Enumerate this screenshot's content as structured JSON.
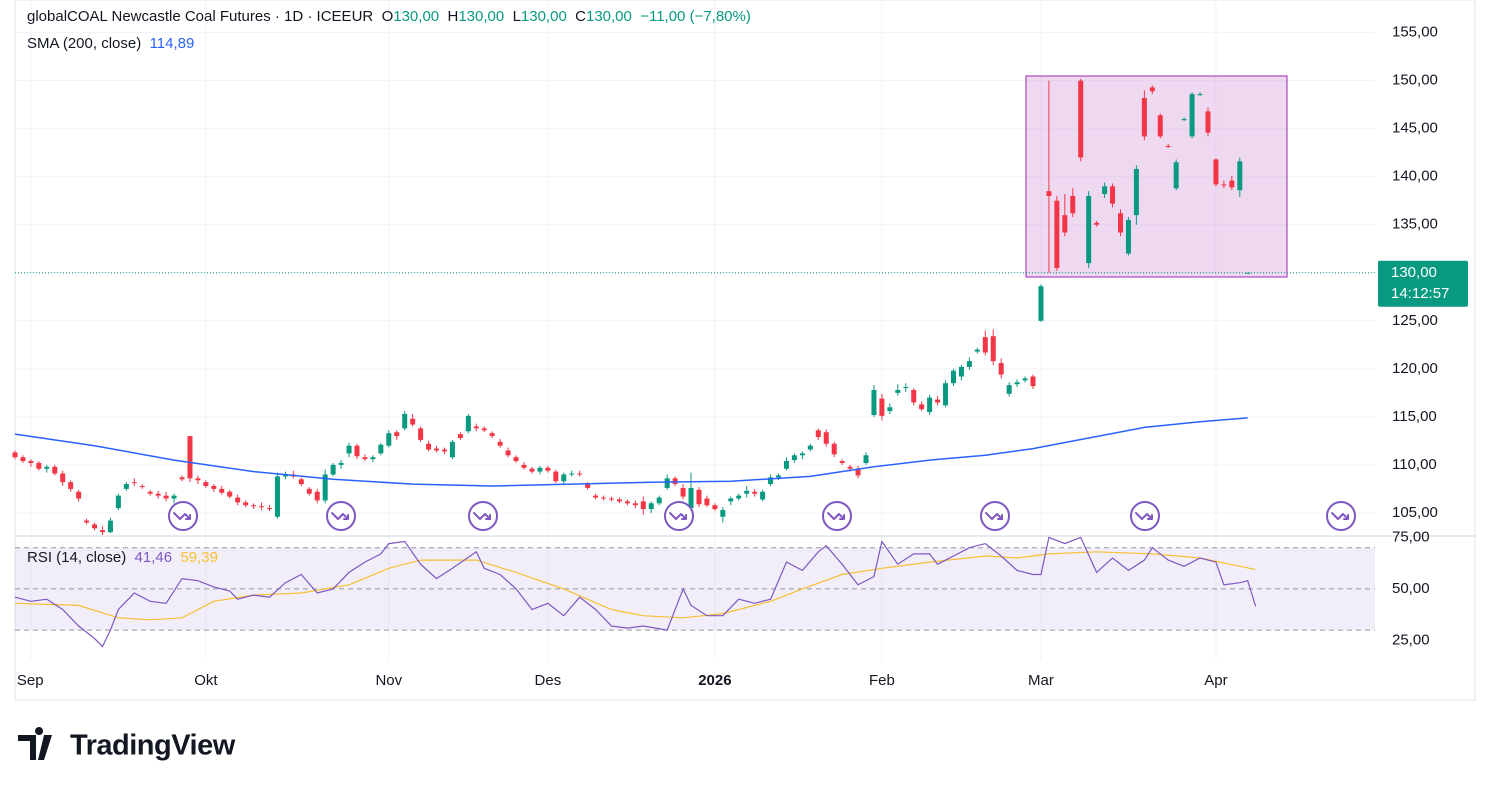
{
  "chart_data": {
    "type": "candlestick",
    "title": "globalCOAL Newcastle Coal Futures · 1D · ICEEUR",
    "quote": [
      {
        "name": "O",
        "value": 130,
        "label": "130,00"
      },
      {
        "name": "H",
        "value": 130,
        "label": "130,00"
      },
      {
        "name": "L",
        "value": 130,
        "label": "130,00"
      },
      {
        "name": "C",
        "value": 130,
        "label": "130,00"
      }
    ],
    "change": {
      "value": -11,
      "label": "−11,00"
    },
    "change_pct": {
      "value": -7.8,
      "label": "(−7,80%)"
    },
    "up_color": "#089981",
    "down_color": "#f23645",
    "candles": [
      [
        111.3,
        111.5,
        110.6,
        110.8
      ],
      [
        110.8,
        111,
        110.2,
        110.4
      ],
      [
        110.4,
        110.6,
        109.8,
        110.2
      ],
      [
        110.2,
        110.4,
        109.4,
        109.6
      ],
      [
        109.6,
        110,
        109.2,
        109.8
      ],
      [
        109.8,
        110,
        108.9,
        109.1
      ],
      [
        109.1,
        109.4,
        107.8,
        108.2
      ],
      [
        108.2,
        108.4,
        107.2,
        107.5
      ],
      [
        107.2,
        107.4,
        106.2,
        106.5
      ],
      [
        104.2,
        104.4,
        103.8,
        104
      ],
      [
        103.8,
        104,
        103.2,
        103.4
      ],
      [
        103.2,
        103.6,
        102.7,
        103
      ],
      [
        103,
        104.5,
        102.9,
        104.2
      ],
      [
        105.5,
        107,
        105.3,
        106.8
      ],
      [
        107.5,
        108.2,
        107.3,
        108
      ],
      [
        108.2,
        108.6,
        107.8,
        108.1
      ],
      [
        107.8,
        108,
        107.5,
        107.7
      ],
      [
        107.2,
        107.4,
        106.8,
        107
      ],
      [
        107,
        107.3,
        106.5,
        106.8
      ],
      [
        106.8,
        107.2,
        106.2,
        106.5
      ],
      [
        106.5,
        107,
        106,
        106.8
      ],
      [
        108.7,
        108.9,
        108.3,
        108.5
      ],
      [
        113,
        113,
        108.2,
        108.6
      ],
      [
        108.6,
        108.9,
        108,
        108.4
      ],
      [
        108.2,
        108.4,
        107.6,
        107.8
      ],
      [
        107.8,
        108,
        107.2,
        107.5
      ],
      [
        107.5,
        107.8,
        106.9,
        107.1
      ],
      [
        107.2,
        107.4,
        106.5,
        106.7
      ],
      [
        106.6,
        106.9,
        105.8,
        106.1
      ],
      [
        106.1,
        106.3,
        105.6,
        105.8
      ],
      [
        105.8,
        106,
        105.4,
        105.7
      ],
      [
        105.7,
        106.1,
        105.3,
        105.6
      ],
      [
        105.5,
        105.8,
        105.2,
        105.4
      ],
      [
        104.6,
        109.2,
        104.4,
        108.8
      ],
      [
        108.8,
        109.3,
        108.5,
        109
      ],
      [
        109,
        109.4,
        108.6,
        108.8
      ],
      [
        108.5,
        108.7,
        107.8,
        108
      ],
      [
        107.5,
        107.7,
        106.8,
        107
      ],
      [
        107.2,
        107.5,
        106,
        106.3
      ],
      [
        106.3,
        109.5,
        106,
        109
      ],
      [
        109,
        110.2,
        108.8,
        110
      ],
      [
        110,
        110.5,
        109.6,
        110.2
      ],
      [
        111.2,
        112.3,
        110.8,
        112
      ],
      [
        112,
        112.2,
        110.6,
        110.9
      ],
      [
        110.8,
        111.1,
        110.4,
        110.6
      ],
      [
        110.6,
        111,
        110.3,
        110.8
      ],
      [
        111.2,
        112.3,
        111,
        112.1
      ],
      [
        112,
        113.6,
        111.8,
        113.3
      ],
      [
        113.4,
        113.6,
        112.6,
        113
      ],
      [
        113.8,
        115.6,
        113.6,
        115.3
      ],
      [
        114.8,
        115.3,
        114,
        114.2
      ],
      [
        113.8,
        114,
        112.4,
        112.6
      ],
      [
        112.2,
        112.5,
        111.4,
        111.6
      ],
      [
        111.7,
        112,
        111.3,
        111.5
      ],
      [
        111.6,
        111.8,
        111.1,
        111.4
      ],
      [
        110.8,
        112.6,
        110.6,
        112.4
      ],
      [
        113.2,
        113.4,
        112.6,
        112.8
      ],
      [
        113.5,
        115.3,
        113.3,
        115.1
      ],
      [
        114,
        114.3,
        113.5,
        113.8
      ],
      [
        113.8,
        114,
        113.4,
        113.6
      ],
      [
        113.3,
        113.5,
        112.8,
        113
      ],
      [
        112.4,
        112.7,
        111.8,
        112
      ],
      [
        111.5,
        111.8,
        110.8,
        111
      ],
      [
        110.8,
        111,
        110.2,
        110.4
      ],
      [
        110,
        110.3,
        109.5,
        109.7
      ],
      [
        109.6,
        109.8,
        109.1,
        109.3
      ],
      [
        109.3,
        109.9,
        109,
        109.7
      ],
      [
        109.7,
        109.9,
        109.2,
        109.4
      ],
      [
        109.3,
        109.5,
        108.1,
        108.3
      ],
      [
        108.3,
        109.2,
        108,
        109
      ],
      [
        109,
        109.4,
        108.8,
        109.1
      ],
      [
        109.1,
        109.4,
        108.8,
        109
      ],
      [
        108,
        108.2,
        107.4,
        107.6
      ],
      [
        106.8,
        107,
        106.4,
        106.6
      ],
      [
        106.6,
        106.8,
        106.3,
        106.5
      ],
      [
        106.5,
        106.7,
        106.2,
        106.4
      ],
      [
        106.4,
        106.6,
        106,
        106.2
      ],
      [
        106.2,
        106.4,
        105.8,
        106
      ],
      [
        106,
        106.3,
        105.5,
        105.8
      ],
      [
        106.2,
        106.7,
        104.8,
        105.4
      ],
      [
        105.4,
        106.2,
        105,
        106
      ],
      [
        106,
        106.8,
        105.8,
        106.6
      ],
      [
        107.6,
        109,
        107.4,
        108.6
      ],
      [
        108.6,
        108.8,
        107.8,
        108
      ],
      [
        107.6,
        108,
        106.4,
        106.7
      ],
      [
        105.5,
        109.2,
        105.2,
        107.6
      ],
      [
        107.4,
        107.7,
        105.6,
        105.9
      ],
      [
        106.5,
        106.8,
        105.6,
        105.8
      ],
      [
        105.8,
        106,
        105.2,
        105.4
      ],
      [
        104.6,
        105.6,
        104,
        105.3
      ],
      [
        106.2,
        106.7,
        105.8,
        106.5
      ],
      [
        106.5,
        107,
        106.3,
        106.8
      ],
      [
        107,
        107.8,
        106.6,
        107.3
      ],
      [
        107.2,
        107.5,
        106.7,
        107
      ],
      [
        106.4,
        107.4,
        106.2,
        107.2
      ],
      [
        108,
        109,
        107.8,
        108.7
      ],
      [
        108.7,
        109.1,
        108.4,
        108.9
      ],
      [
        109.6,
        110.8,
        109.4,
        110.4
      ],
      [
        110.5,
        111.2,
        110.2,
        111
      ],
      [
        111,
        111.4,
        110.6,
        111.2
      ],
      [
        111.6,
        112.2,
        111.4,
        112
      ],
      [
        113.6,
        113.8,
        112.6,
        112.9
      ],
      [
        113.4,
        113.7,
        111.9,
        112.2
      ],
      [
        112.2,
        112.4,
        110.8,
        111.1
      ],
      [
        110.4,
        110.6,
        110,
        110.2
      ],
      [
        109.8,
        110,
        109.3,
        109.6
      ],
      [
        109.6,
        109.9,
        108.6,
        108.9
      ],
      [
        110.2,
        111.3,
        110,
        111
      ],
      [
        115.2,
        118.3,
        115,
        117.8
      ],
      [
        116.9,
        117.4,
        114.6,
        115.1
      ],
      [
        115.6,
        116.4,
        115.3,
        116
      ],
      [
        117.5,
        118.4,
        117.2,
        117.8
      ],
      [
        118,
        118.5,
        117.6,
        118.1
      ],
      [
        117.8,
        118,
        116.2,
        116.5
      ],
      [
        116.3,
        116.6,
        115.6,
        115.8
      ],
      [
        115.5,
        117.3,
        115.2,
        117
      ],
      [
        116.8,
        117.2,
        116.2,
        116.5
      ],
      [
        116.2,
        118.8,
        116,
        118.5
      ],
      [
        118.5,
        120,
        118.2,
        119.8
      ],
      [
        119.2,
        120.4,
        118.8,
        120.2
      ],
      [
        120.2,
        121.2,
        119.9,
        120.8
      ],
      [
        121.8,
        122.2,
        121.6,
        122
      ],
      [
        123.3,
        124,
        121.4,
        121.7
      ],
      [
        123.4,
        124.1,
        120.4,
        120.8
      ],
      [
        120.6,
        121.1,
        119,
        119.4
      ],
      [
        117.4,
        118.6,
        117.1,
        118.3
      ],
      [
        118.4,
        118.9,
        118.1,
        118.6
      ],
      [
        118.8,
        119.2,
        118.6,
        119
      ],
      [
        119.2,
        119.4,
        117.9,
        118.2
      ],
      [
        125,
        128.8,
        124.9,
        128.6
      ],
      [
        138.5,
        150,
        130,
        138
      ],
      [
        137.5,
        138,
        130.2,
        130.5
      ],
      [
        136,
        138.2,
        133.8,
        134.2
      ],
      [
        138,
        138.8,
        135.8,
        136.2
      ],
      [
        150,
        150.2,
        141.6,
        142
      ],
      [
        131,
        138.5,
        130.5,
        138
      ],
      [
        135.2,
        135.4,
        134.8,
        135
      ],
      [
        138.2,
        139.4,
        137.8,
        139
      ],
      [
        139,
        139.3,
        136.8,
        137.2
      ],
      [
        136.2,
        136.6,
        133.8,
        134.2
      ],
      [
        132,
        135.8,
        131.8,
        135.5
      ],
      [
        136,
        141.2,
        135,
        140.8
      ],
      [
        148.2,
        149,
        143.8,
        144.2
      ],
      [
        149.3,
        149.5,
        148.6,
        148.9
      ],
      [
        146.4,
        146.6,
        144,
        144.2
      ],
      [
        143.2,
        143.4,
        143,
        143.1
      ],
      [
        138.8,
        141.8,
        138.6,
        141.5
      ],
      [
        146,
        146.2,
        145.8,
        146
      ],
      [
        144.2,
        148.8,
        144,
        148.6
      ],
      [
        148.6,
        148.8,
        148.4,
        148.6
      ],
      [
        146.8,
        147.2,
        144.2,
        144.6
      ],
      [
        141.8,
        141.9,
        139,
        139.2
      ],
      [
        139.2,
        139.6,
        138.8,
        139.1
      ],
      [
        139.6,
        140.1,
        138.6,
        138.9
      ],
      [
        138.6,
        142,
        137.9,
        141.6
      ],
      [
        130,
        130,
        130,
        130
      ]
    ],
    "last_label": "130,00",
    "countdown": "14:12:57",
    "xlim": [
      0,
      171
    ],
    "xticks": [
      {
        "value": 2,
        "label": "Sep"
      },
      {
        "value": 24,
        "label": "Okt"
      },
      {
        "value": 47,
        "label": "Nov"
      },
      {
        "value": 67,
        "label": "Des"
      },
      {
        "value": 88,
        "label": "2026"
      },
      {
        "value": 109,
        "label": "Feb"
      },
      {
        "value": 129,
        "label": "Mar"
      },
      {
        "value": 151,
        "label": "Apr"
      }
    ],
    "ylim": [
      102.7,
      158.4
    ],
    "yticks": [
      {
        "value": 105,
        "label": "105,00"
      },
      {
        "value": 110,
        "label": "110,00"
      },
      {
        "value": 115,
        "label": "115,00"
      },
      {
        "value": 120,
        "label": "120,00"
      },
      {
        "value": 125,
        "label": "125,00"
      },
      {
        "value": 130,
        "label": "130,00"
      },
      {
        "value": 135,
        "label": "135,00"
      },
      {
        "value": 140,
        "label": "140,00"
      },
      {
        "value": 145,
        "label": "145,00"
      },
      {
        "value": 150,
        "label": "150,00"
      },
      {
        "value": 155,
        "label": "155,00"
      }
    ],
    "grid": true,
    "sma": {
      "name": "SMA (200, close)",
      "color": "#2962ff",
      "last_label": "114,89",
      "x": [
        0,
        10,
        20,
        30,
        40,
        50,
        60,
        70,
        80,
        90,
        100,
        108,
        115,
        122,
        128,
        135,
        142,
        149,
        155
      ],
      "values": [
        113.2,
        112,
        110.5,
        109.3,
        108.5,
        108,
        107.8,
        108,
        108.2,
        108.3,
        108.8,
        109.8,
        110.5,
        111,
        111.7,
        112.8,
        113.9,
        114.5,
        114.89
      ]
    },
    "rsi": {
      "name": "RSI (14, close)",
      "color": "#7e57c2",
      "last_label": "41,46",
      "x": [
        0,
        2,
        4,
        6,
        8,
        10,
        11,
        12,
        13,
        15,
        17,
        19,
        21,
        23,
        25,
        27,
        28,
        30,
        32,
        34,
        36,
        38,
        40,
        42,
        44,
        46,
        47,
        49,
        51,
        53,
        55,
        58,
        59,
        61,
        63,
        65,
        67,
        69,
        71,
        73,
        75,
        77,
        79,
        82,
        84,
        85,
        87,
        89,
        91,
        93,
        95,
        97,
        99,
        101,
        102,
        104,
        106,
        108,
        109,
        111,
        113,
        115,
        116,
        118,
        120,
        122,
        124,
        126,
        128,
        129,
        130,
        132,
        134,
        136,
        138,
        140,
        142,
        143,
        145,
        147,
        149,
        151,
        152,
        154,
        155,
        156
      ],
      "values": [
        46,
        44,
        45,
        40,
        32,
        26,
        22,
        30,
        40,
        48,
        44,
        43,
        55,
        54,
        51,
        49,
        45,
        47,
        46,
        53,
        57,
        48,
        50,
        58,
        63,
        67,
        72,
        73,
        62,
        55,
        60,
        68,
        60,
        57,
        50,
        40,
        43,
        37,
        46,
        40,
        32,
        31,
        32,
        30,
        50,
        42,
        37,
        37,
        45,
        43,
        45,
        63,
        59,
        68,
        71,
        62,
        52,
        56,
        73,
        62,
        67,
        67,
        62,
        66,
        70,
        72,
        66,
        59,
        57,
        57,
        75,
        72,
        75,
        58,
        65,
        59,
        64,
        70,
        64,
        61,
        65,
        63,
        52,
        53,
        54,
        41.46
      ],
      "ma": {
        "color": "#f5c033",
        "last_label": "59,39",
        "x": [
          0,
          8,
          13,
          17,
          21,
          25,
          30,
          36,
          42,
          47,
          51,
          58,
          63,
          69,
          75,
          79,
          84,
          89,
          95,
          99,
          104,
          109,
          115,
          122,
          126,
          130,
          136,
          143,
          149,
          156
        ],
        "values": [
          43,
          42,
          36,
          35,
          36,
          44,
          47,
          48,
          52,
          60,
          64,
          64,
          58,
          50,
          40,
          37,
          36,
          38,
          44,
          50,
          57,
          60,
          63,
          66,
          65,
          67,
          68,
          67,
          65,
          59.39
        ]
      },
      "ylim": [
        15.5,
        75.2
      ],
      "yticks": [
        {
          "value": 25,
          "label": "25,00"
        },
        {
          "value": 50,
          "label": "50,00"
        },
        {
          "value": 75,
          "label": "75,00"
        }
      ],
      "bands": [
        30,
        50,
        70
      ]
    }
  }
}
